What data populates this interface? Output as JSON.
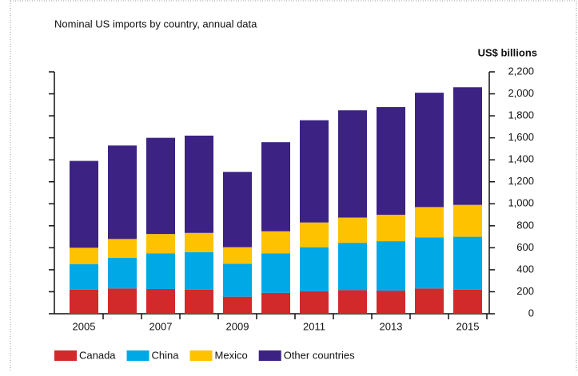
{
  "chart_data": {
    "type": "stacked_bar",
    "subtitle": "Nominal US imports by country, annual data",
    "y_axis_label": "US$ billions",
    "categories": [
      "2005",
      null,
      "2007",
      null,
      "2009",
      null,
      "2011",
      null,
      "2013",
      null,
      "2015"
    ],
    "series": [
      {
        "name": "Canada",
        "color": "#d2292a",
        "values": [
          220,
          230,
          225,
          220,
          155,
          190,
          205,
          215,
          210,
          230,
          220
        ]
      },
      {
        "name": "China",
        "color": "#00a9e6",
        "values": [
          230,
          280,
          325,
          340,
          300,
          360,
          400,
          430,
          450,
          465,
          480
        ]
      },
      {
        "name": "Mexico",
        "color": "#fec200",
        "values": [
          150,
          170,
          175,
          175,
          150,
          200,
          225,
          230,
          240,
          275,
          290
        ]
      },
      {
        "name": "Other countries",
        "color": "#3b2283",
        "values": [
          790,
          850,
          875,
          885,
          685,
          810,
          930,
          975,
          980,
          1040,
          1070
        ]
      }
    ],
    "ylim": [
      0,
      2200
    ],
    "yticks": [
      0,
      200,
      400,
      600,
      800,
      {
        "value": 1000,
        "label": "1,000"
      },
      {
        "value": 1200,
        "label": "1,200"
      },
      {
        "value": 1400,
        "label": "1,400"
      },
      {
        "value": 1600,
        "label": "1,600"
      },
      {
        "value": 1800,
        "label": "1,800"
      },
      {
        "value": 2000,
        "label": "2,000"
      },
      {
        "value": 2200,
        "label": "2,200"
      }
    ],
    "legend": "bottom"
  }
}
